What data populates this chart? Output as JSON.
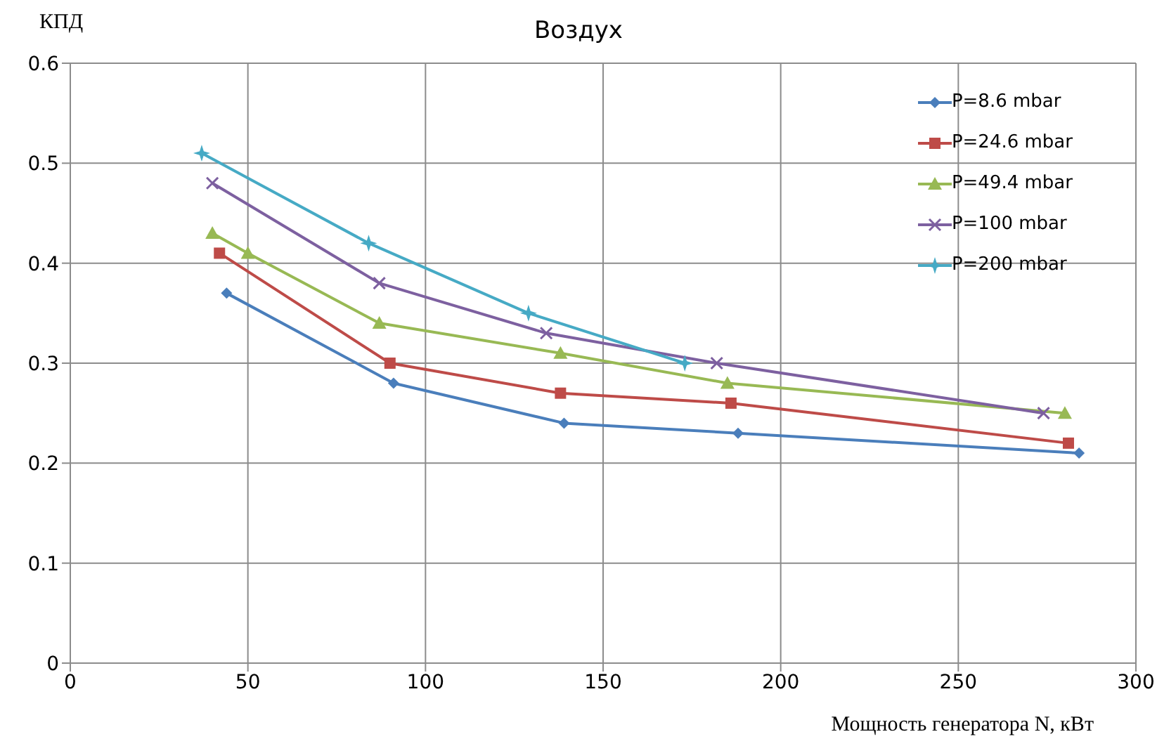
{
  "chart_data": {
    "type": "line",
    "title": "Воздух",
    "xlabel": "Мощность генератора N, кВт",
    "ylabel": "КПД",
    "xlim": [
      0,
      300
    ],
    "xticks": [
      0,
      50,
      100,
      150,
      200,
      250,
      300
    ],
    "ylim": [
      0,
      0.6
    ],
    "yticks": [
      0,
      0.1,
      0.2,
      0.3,
      0.4,
      0.5,
      0.6
    ],
    "grid": true,
    "legend": "top right",
    "line_style": "solid",
    "series": [
      {
        "name": "P=8.6 mbar",
        "color": "#4a7ebb",
        "marker": "diamond",
        "x": [
          44,
          91,
          139,
          188,
          284
        ],
        "values": [
          0.37,
          0.28,
          0.24,
          0.23,
          0.21
        ]
      },
      {
        "name": "P=24.6 mbar",
        "color": "#be4b48",
        "marker": "square",
        "x": [
          42,
          90,
          138,
          186,
          281
        ],
        "values": [
          0.41,
          0.3,
          0.27,
          0.26,
          0.22
        ]
      },
      {
        "name": "P=49.4 mbar",
        "color": "#98b954",
        "marker": "triangle",
        "x": [
          40,
          50,
          87,
          138,
          185,
          280
        ],
        "values": [
          0.43,
          0.41,
          0.34,
          0.31,
          0.28,
          0.25
        ]
      },
      {
        "name": "P=100 mbar",
        "color": "#7d60a0",
        "marker": "cross",
        "x": [
          40,
          87,
          134,
          182,
          274
        ],
        "values": [
          0.48,
          0.38,
          0.33,
          0.3,
          0.25
        ]
      },
      {
        "name": "P=200 mbar",
        "color": "#46aac5",
        "marker": "star",
        "x": [
          37,
          84,
          129,
          173
        ],
        "values": [
          0.51,
          0.42,
          0.35,
          0.3
        ]
      }
    ]
  }
}
